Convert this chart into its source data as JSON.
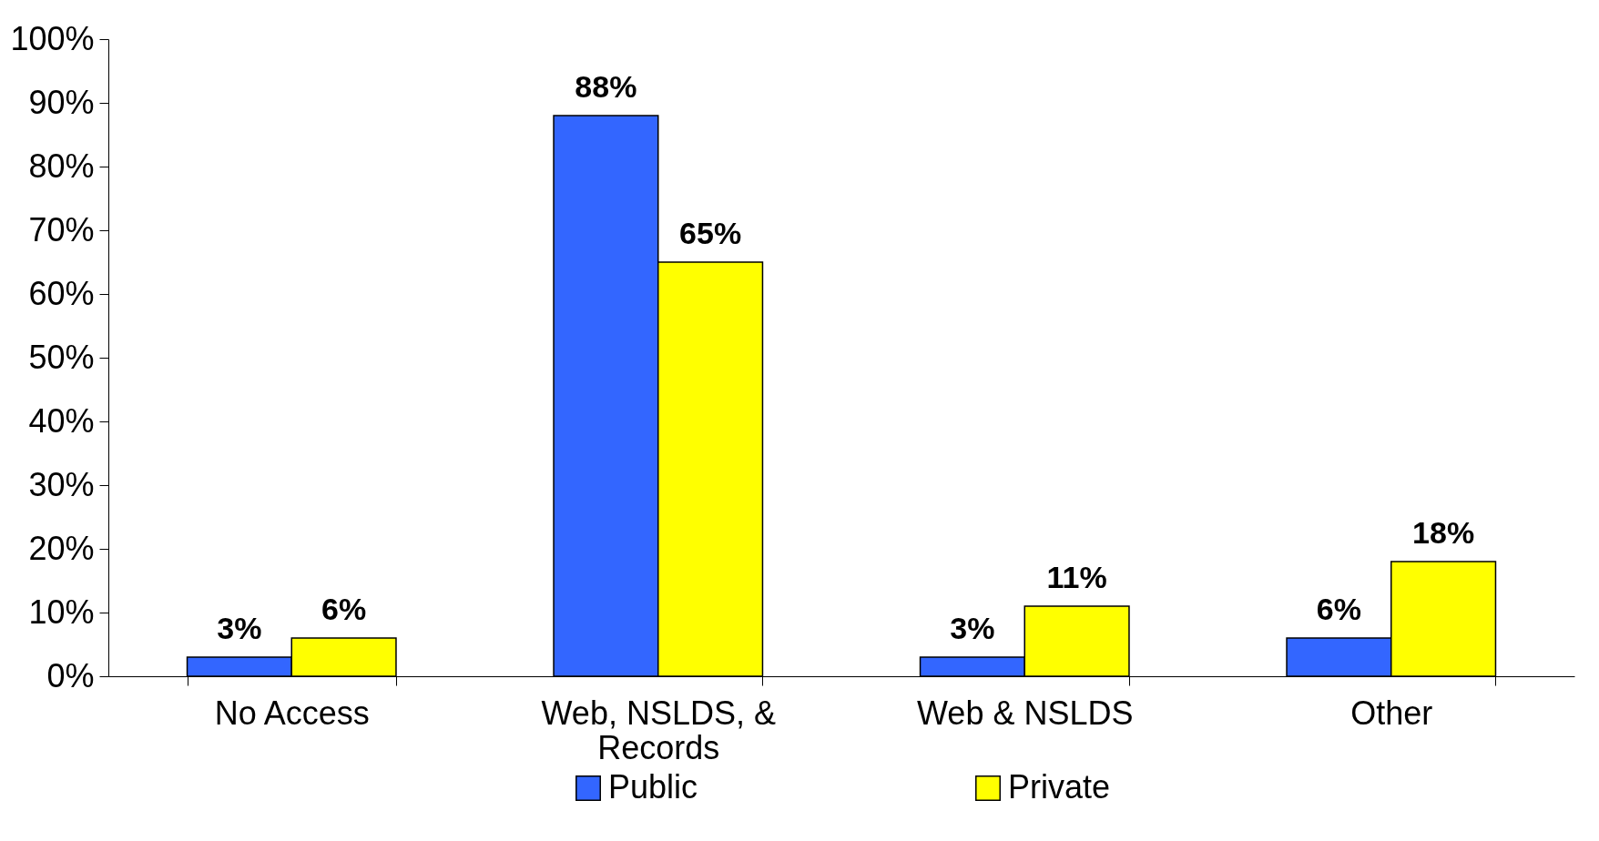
{
  "chart_data": {
    "type": "bar",
    "categories": [
      "No Access",
      "Web, NSLDS, & Records",
      "Web & NSLDS",
      "Other"
    ],
    "series": [
      {
        "name": "Public",
        "color": "#3366ff",
        "values": [
          3,
          88,
          3,
          6
        ],
        "value_labels": [
          "3%",
          "88%",
          "3%",
          "6%"
        ]
      },
      {
        "name": "Private",
        "color": "#ffff00",
        "values": [
          6,
          65,
          11,
          18
        ],
        "value_labels": [
          "6%",
          "65%",
          "11%",
          "18%"
        ]
      }
    ],
    "ylim": [
      0,
      100
    ],
    "yticks": [
      {
        "value": 0,
        "label": "0%"
      },
      {
        "value": 10,
        "label": "10%"
      },
      {
        "value": 20,
        "label": "20%"
      },
      {
        "value": 30,
        "label": "30%"
      },
      {
        "value": 40,
        "label": "40%"
      },
      {
        "value": 50,
        "label": "50%"
      },
      {
        "value": 60,
        "label": "60%"
      },
      {
        "value": 70,
        "label": "70%"
      },
      {
        "value": 80,
        "label": "80%"
      },
      {
        "value": 90,
        "label": "90%"
      },
      {
        "value": 100,
        "label": "100%"
      }
    ],
    "grid": false,
    "legend": "bottom"
  }
}
